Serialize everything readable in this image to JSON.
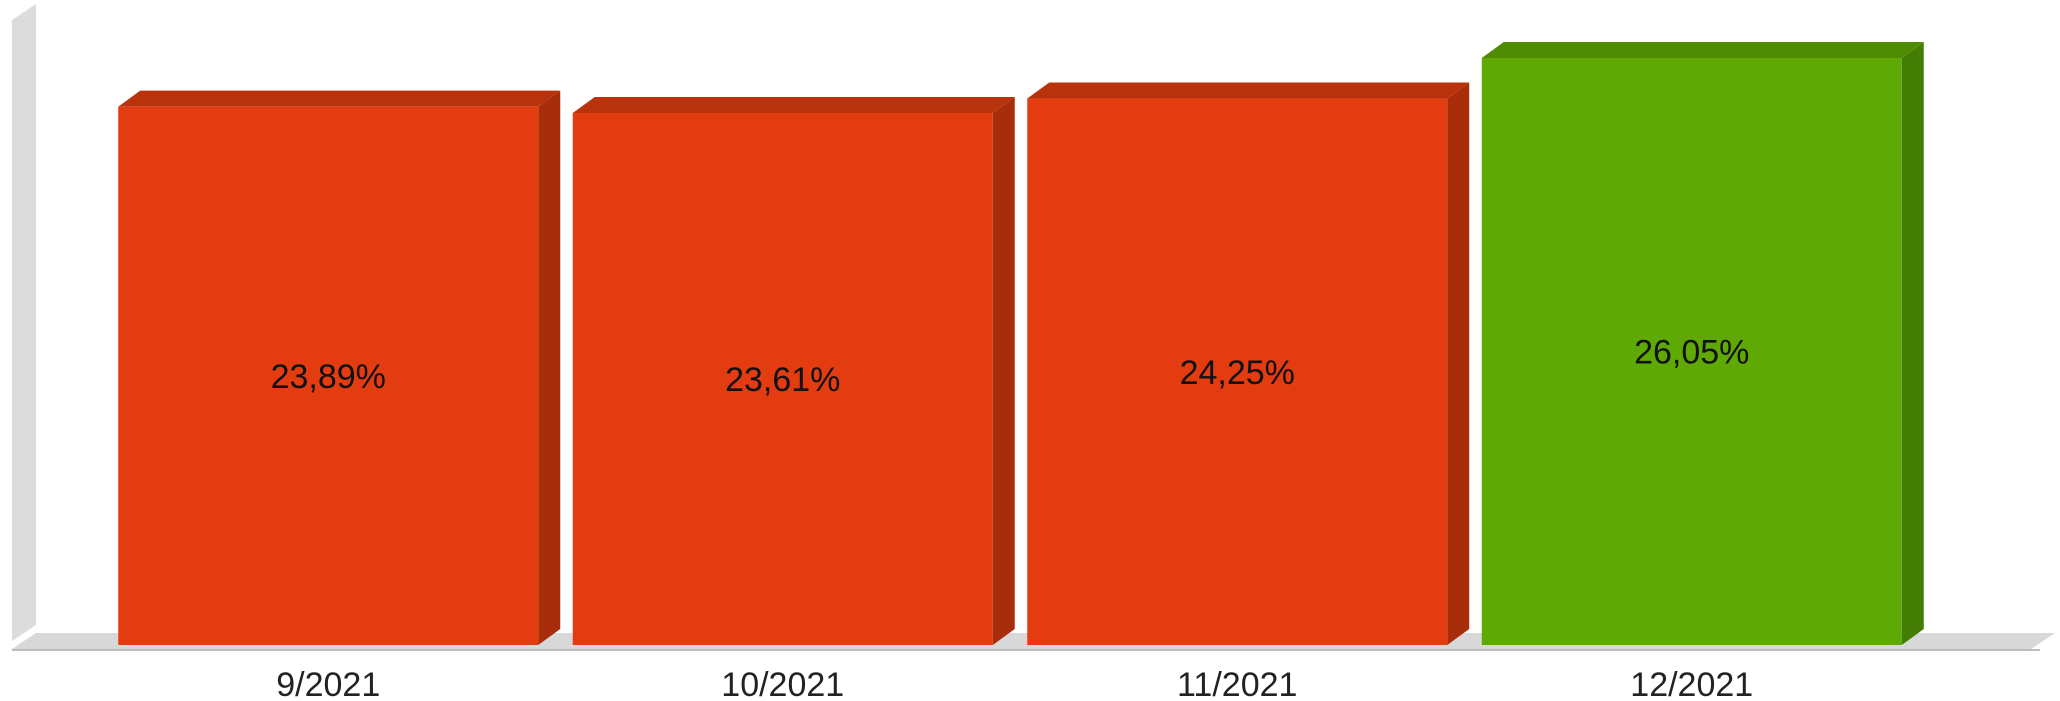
{
  "chart_data": {
    "type": "bar",
    "categories": [
      "9/2021",
      "10/2021",
      "11/2021",
      "12/2021"
    ],
    "values": [
      23.89,
      23.61,
      24.25,
      26.05
    ],
    "value_labels": [
      "23,89%",
      "23,61%",
      "24,25%",
      "26,05%"
    ],
    "title": "",
    "xlabel": "",
    "ylabel": "",
    "ylim": [
      0,
      26.05
    ],
    "grid": false,
    "style": "3d",
    "colors": {
      "normal": "#e23c10",
      "normal_side": "#a82d0b",
      "normal_top": "#b8330c",
      "highlight": "#5fa905",
      "highlight_side": "#447d03",
      "highlight_top": "#4f8c04",
      "wall": "#dcdcdc",
      "floor": "#d8d8d8"
    },
    "highlight_index": 3
  }
}
